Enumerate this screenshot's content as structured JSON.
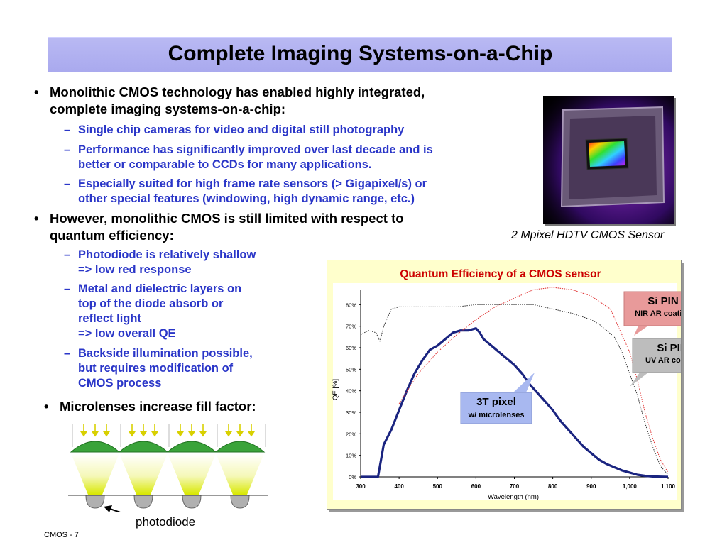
{
  "slide": {
    "title": "Complete Imaging Systems-on-a-Chip",
    "bullets": [
      {
        "text_l1": "Monolithic CMOS technology has enabled highly integrated,",
        "text_l2": "complete imaging systems-on-a-chip:"
      },
      {
        "text_l1": "However, monolithic CMOS is still limited with respect to",
        "text_l2": "quantum efficiency:"
      },
      {
        "text": "Microlenses increase fill factor:"
      }
    ],
    "sub_bullets_1": [
      {
        "l1": "Single chip cameras for video and digital still photography"
      },
      {
        "l1": "Performance has significantly improved over last decade and is",
        "l2": "better or comparable to CCDs for many applications."
      },
      {
        "l1": "Especially suited for high frame rate sensors (> Gigapixel/s) or",
        "l2": "other special features (windowing, high dynamic range, etc.)"
      }
    ],
    "sub_bullets_2": [
      {
        "l1": "Photodiode is relatively shallow",
        "l2": "=> low red response"
      },
      {
        "l1": "Metal and dielectric layers on",
        "l2": "top of the diode absorb or",
        "l3": "reflect light",
        "l4": "=> low overall QE"
      },
      {
        "l1": "Backside illumination possible,",
        "l2": "but requires modification of",
        "l3": "CMOS process"
      }
    ],
    "photo_caption": "2 Mpixel HDTV CMOS Sensor",
    "photodiode_label": "photodiode",
    "footer": "CMOS - 7",
    "bullet_glyph": "•",
    "dash_glyph": "–"
  },
  "callouts": {
    "si_pin_nir": {
      "title": "Si PIN",
      "subtitle": "NIR AR coating"
    },
    "si_pin_uv": {
      "title": "Si PIN",
      "subtitle": "UV AR coating"
    },
    "three_t": {
      "title": "3T pixel",
      "subtitle": "w/ microlenses"
    }
  },
  "colors": {
    "title_bar": "#aaaaef",
    "sub_bullet_text": "#2a36c8",
    "chart_title": "#cc0000",
    "chart_bg": "#ffffcc",
    "series_3t": "#1a2480",
    "series_nir": "#e03030",
    "series_uv": "#333333",
    "callout_nir": "#e89a9a",
    "callout_uv": "#bdbdbd",
    "callout_3t": "#a8b8f0"
  },
  "chart_data": {
    "type": "line",
    "title": "Quantum Efficiency of a CMOS sensor",
    "xlabel": "Wavelength (nm)",
    "ylabel": "QE [%]",
    "xlim": [
      300,
      1100
    ],
    "ylim": [
      0,
      90
    ],
    "xticks": [
      "300",
      "400",
      "500",
      "600",
      "700",
      "800",
      "900",
      "1,000",
      "1,100"
    ],
    "yticks": [
      "0%",
      "10%",
      "20%",
      "30%",
      "40%",
      "50%",
      "60%",
      "70%",
      "80%"
    ],
    "grid": false,
    "series": [
      {
        "name": "3T pixel w/ microlenses",
        "style": "solid",
        "x": [
          300,
          345,
          350,
          360,
          380,
          400,
          420,
          440,
          460,
          480,
          500,
          520,
          540,
          560,
          580,
          600,
          610,
          620,
          640,
          660,
          680,
          700,
          720,
          740,
          760,
          780,
          800,
          820,
          840,
          860,
          880,
          900,
          920,
          940,
          960,
          980,
          1000,
          1020,
          1040,
          1060,
          1080,
          1100
        ],
        "y": [
          0,
          0,
          5,
          15,
          22,
          31,
          40,
          48,
          54,
          59,
          61,
          64,
          67,
          68,
          68,
          69,
          67,
          64,
          61,
          58,
          55,
          52,
          48,
          43,
          39,
          35,
          31,
          26,
          22,
          18,
          14,
          11,
          8,
          6,
          4.5,
          3,
          2,
          1,
          0.5,
          0.2,
          0.1,
          0
        ]
      },
      {
        "name": "Si PIN NIR AR coating",
        "style": "dotted",
        "x": [
          400,
          450,
          500,
          550,
          600,
          650,
          700,
          750,
          800,
          850,
          900,
          950,
          1000,
          1020,
          1040,
          1060,
          1080,
          1100
        ],
        "y": [
          34,
          48,
          58,
          66,
          73,
          79,
          83,
          87,
          88,
          87,
          84,
          78,
          58,
          45,
          30,
          18,
          8,
          2
        ]
      },
      {
        "name": "Si PIN UV AR coating",
        "style": "dotted",
        "x": [
          300,
          320,
          340,
          350,
          360,
          380,
          400,
          450,
          500,
          550,
          600,
          650,
          700,
          750,
          800,
          850,
          900,
          920,
          940,
          960,
          980,
          1000,
          1020,
          1040,
          1060,
          1080,
          1100
        ],
        "y": [
          66,
          68,
          67,
          63,
          70,
          78,
          79,
          79,
          79,
          79,
          80,
          80,
          80,
          80,
          78,
          76,
          73,
          71,
          68,
          65,
          58,
          48,
          38,
          25,
          14,
          5,
          1
        ]
      }
    ]
  }
}
